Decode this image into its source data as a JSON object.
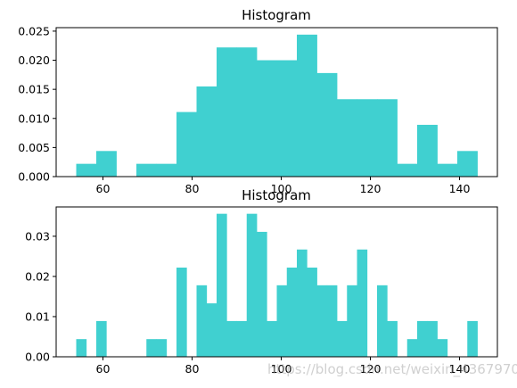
{
  "watermark": "https://blog.csdn.net/weixin_43679709",
  "colors": {
    "bar": "#40d0d0",
    "axes": "#000000"
  },
  "chart_data": [
    {
      "type": "bar",
      "title": "Histogram",
      "xlabel": "",
      "ylabel": "",
      "xlim": [
        49.5,
        148.5
      ],
      "ylim": [
        0,
        0.0256
      ],
      "xticks": [
        "60",
        "80",
        "100",
        "120",
        "140"
      ],
      "yticks": [
        "0.000",
        "0.005",
        "0.010",
        "0.015",
        "0.020",
        "0.025"
      ],
      "bin_width": 4.5,
      "bin_start": 54,
      "values": [
        0.0022,
        0.0044,
        0,
        0.0022,
        0.0022,
        0.0111,
        0.0155,
        0.0222,
        0.0222,
        0.02,
        0.02,
        0.0244,
        0.0178,
        0.0133,
        0.0133,
        0.0133,
        0.0022,
        0.0089,
        0.0022,
        0.0044
      ]
    },
    {
      "type": "bar",
      "title": "Histogram",
      "xlabel": "",
      "ylabel": "",
      "xlim": [
        49.5,
        148.5
      ],
      "ylim": [
        0,
        0.0373
      ],
      "xticks": [
        "60",
        "80",
        "100",
        "120",
        "140"
      ],
      "yticks": [
        "0.00",
        "0.01",
        "0.02",
        "0.03"
      ],
      "bin_width": 2.25,
      "bin_start": 54,
      "values": [
        0.0044,
        0,
        0.0089,
        0,
        0,
        0,
        0,
        0.0044,
        0.0044,
        0,
        0.0222,
        0,
        0.0178,
        0.0133,
        0.0356,
        0.0089,
        0.0089,
        0.0356,
        0.0311,
        0.0089,
        0.0178,
        0.0222,
        0.0267,
        0.0222,
        0.0178,
        0.0178,
        0.0089,
        0.0178,
        0.0267,
        0,
        0.0178,
        0.0089,
        0,
        0.0044,
        0.0089,
        0.0089,
        0.0044,
        0,
        0,
        0.0089
      ]
    }
  ]
}
